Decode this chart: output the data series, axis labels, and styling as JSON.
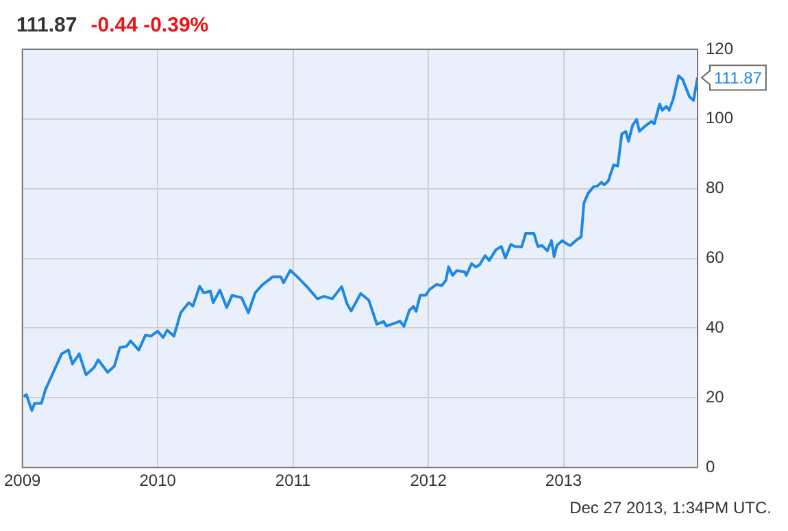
{
  "chart_data": {
    "type": "line",
    "title": "111.87",
    "subtitle": "-0.44 -0.39%",
    "x": [
      2009.01,
      2009.03,
      2009.07,
      2009.09,
      2009.14,
      2009.17,
      2009.22,
      2009.29,
      2009.34,
      2009.37,
      2009.42,
      2009.47,
      2009.53,
      2009.56,
      2009.63,
      2009.68,
      2009.72,
      2009.77,
      2009.8,
      2009.86,
      2009.91,
      2009.95,
      2010.0,
      2010.04,
      2010.07,
      2010.12,
      2010.17,
      2010.23,
      2010.26,
      2010.31,
      2010.34,
      2010.39,
      2010.41,
      2010.46,
      2010.51,
      2010.55,
      2010.62,
      2010.67,
      2010.72,
      2010.77,
      2010.85,
      2010.91,
      2010.93,
      2010.98,
      2011.04,
      2011.11,
      2011.18,
      2011.23,
      2011.29,
      2011.36,
      2011.4,
      2011.43,
      2011.5,
      2011.56,
      2011.62,
      2011.67,
      2011.69,
      2011.76,
      2011.79,
      2011.82,
      2011.86,
      2011.89,
      2011.91,
      2011.94,
      2011.98,
      2012.01,
      2012.06,
      2012.1,
      2012.13,
      2012.15,
      2012.18,
      2012.21,
      2012.27,
      2012.28,
      2012.32,
      2012.35,
      2012.38,
      2012.42,
      2012.45,
      2012.5,
      2012.54,
      2012.57,
      2012.61,
      2012.64,
      2012.69,
      2012.72,
      2012.78,
      2012.81,
      2012.84,
      2012.88,
      2012.91,
      2012.93,
      2012.95,
      2012.99,
      2013.03,
      2013.05,
      2013.1,
      2013.13,
      2013.15,
      2013.18,
      2013.22,
      2013.25,
      2013.28,
      2013.3,
      2013.33,
      2013.37,
      2013.4,
      2013.43,
      2013.46,
      2013.48,
      2013.51,
      2013.54,
      2013.56,
      2013.61,
      2013.65,
      2013.67,
      2013.71,
      2013.73,
      2013.76,
      2013.78,
      2013.81,
      2013.85,
      2013.88,
      2013.93,
      2013.96,
      2013.99
    ],
    "series": [
      {
        "color": "#1e88e5",
        "values": [
          20.4,
          20.9,
          16.3,
          18.4,
          18.4,
          22.3,
          26.6,
          32.6,
          33.7,
          29.7,
          32.6,
          26.6,
          28.7,
          30.9,
          27.3,
          29.1,
          34.4,
          34.8,
          36.3,
          33.7,
          38,
          37.7,
          39.1,
          37.3,
          39.4,
          37.7,
          44.4,
          47.3,
          46.3,
          52,
          50.1,
          50.6,
          47.3,
          50.9,
          45.9,
          49.4,
          48.7,
          44.4,
          50.1,
          52.3,
          54.7,
          54.7,
          53,
          56.6,
          54.4,
          51.6,
          48.4,
          49.1,
          48.4,
          51.9,
          46.9,
          44.9,
          49.9,
          48,
          41.1,
          41.9,
          40.6,
          41.5,
          42,
          40.5,
          45.1,
          46.2,
          44.8,
          49.4,
          49.4,
          51.1,
          52.5,
          52.2,
          53.7,
          57.6,
          55.1,
          56.5,
          56.1,
          55.1,
          58.5,
          57.5,
          58.2,
          60.8,
          59.4,
          62.5,
          63.4,
          60.1,
          64,
          63.4,
          63.3,
          67.2,
          67.2,
          63.4,
          63.7,
          62.2,
          65.1,
          60.5,
          63.7,
          65.1,
          64,
          63.7,
          65.4,
          66.2,
          75.8,
          78.6,
          80.5,
          80.8,
          81.8,
          81.1,
          82.2,
          86.8,
          86.5,
          95.7,
          96.4,
          93.6,
          98.2,
          99.9,
          96.5,
          98.2,
          99.3,
          98.6,
          104.3,
          102.5,
          103.6,
          102.5,
          105.7,
          112.4,
          111.3,
          106.4,
          105.3,
          111.87
        ]
      }
    ],
    "xlim": [
      2009,
      2013.99
    ],
    "xticks": [
      2009,
      2010,
      2011,
      2012,
      2013
    ],
    "ylim": [
      0,
      120
    ],
    "yticks": [
      0,
      20,
      40,
      60,
      80,
      100,
      120
    ],
    "grid": true,
    "marker": "none",
    "line_style": "solid",
    "annotations": [
      {
        "text": "111.87",
        "x": 2013.99,
        "y": 111.87
      },
      "Dec 27 2013, 1:34PM UTC."
    ]
  }
}
